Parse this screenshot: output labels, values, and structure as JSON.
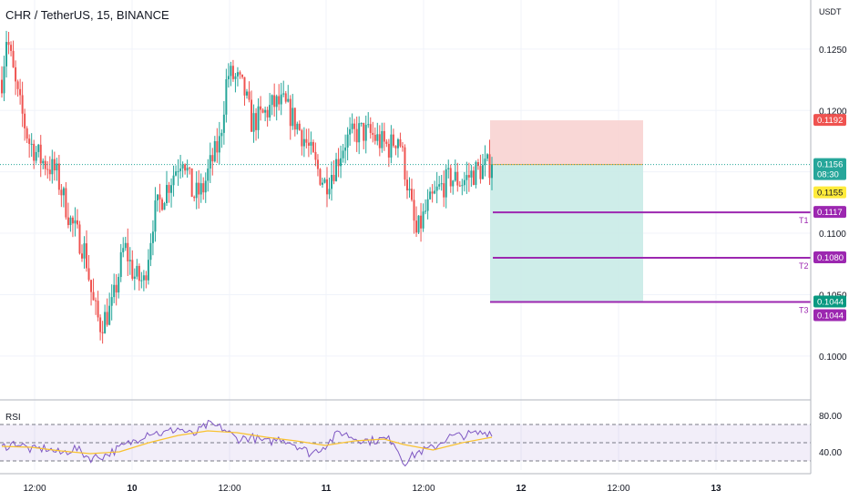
{
  "header": {
    "title": "CHR / TetherUS, 15, BINANCE"
  },
  "price_axis": {
    "unit": "USDT"
  },
  "colors": {
    "up": "#26a69a",
    "down": "#ef5350",
    "target_line": "#9c27b0",
    "stop_zone": "#f8d0cf",
    "profit_zone": "#c9ebe7",
    "current_price": "#26a69a",
    "bid_badge": "#ffeb3b",
    "rsi_line": "#7e57c2",
    "rsi_ma": "#f9c22e"
  },
  "chart_data": {
    "type": "candlestick",
    "symbol": "CHR / TetherUS",
    "interval": "15",
    "exchange": "BINANCE",
    "ylim": [
      0.0965,
      0.129
    ],
    "y_ticks": [
      "0.1250",
      "0.1200",
      "0.1100",
      "0.1050",
      "0.1000"
    ],
    "x_ticks": [
      "12:00",
      "10",
      "12:00",
      "11",
      "12:00",
      "12",
      "12:00",
      "13"
    ],
    "price_path": [
      [
        0.0,
        0.1225
      ],
      [
        0.01,
        0.1262
      ],
      [
        0.03,
        0.1215
      ],
      [
        0.055,
        0.1175
      ],
      [
        0.08,
        0.116
      ],
      [
        0.11,
        0.115
      ],
      [
        0.14,
        0.111
      ],
      [
        0.17,
        0.1085
      ],
      [
        0.185,
        0.1045
      ],
      [
        0.2,
        0.1025
      ],
      [
        0.225,
        0.104
      ],
      [
        0.25,
        0.109
      ],
      [
        0.27,
        0.1065
      ],
      [
        0.29,
        0.106
      ],
      [
        0.31,
        0.1115
      ],
      [
        0.34,
        0.114
      ],
      [
        0.37,
        0.1165
      ],
      [
        0.39,
        0.113
      ],
      [
        0.41,
        0.1135
      ],
      [
        0.425,
        0.1155
      ],
      [
        0.445,
        0.1175
      ],
      [
        0.46,
        0.123
      ],
      [
        0.48,
        0.1225
      ],
      [
        0.495,
        0.1215
      ],
      [
        0.51,
        0.119
      ],
      [
        0.53,
        0.1195
      ],
      [
        0.555,
        0.1205
      ],
      [
        0.575,
        0.1205
      ],
      [
        0.6,
        0.119
      ],
      [
        0.62,
        0.1175
      ],
      [
        0.64,
        0.1155
      ],
      [
        0.66,
        0.114
      ],
      [
        0.68,
        0.1155
      ],
      [
        0.7,
        0.1175
      ],
      [
        0.73,
        0.1183
      ],
      [
        0.755,
        0.118
      ],
      [
        0.77,
        0.1175
      ],
      [
        0.79,
        0.117
      ],
      [
        0.81,
        0.118
      ],
      [
        0.83,
        0.1135
      ],
      [
        0.845,
        0.1098
      ],
      [
        0.865,
        0.1118
      ],
      [
        0.89,
        0.1135
      ],
      [
        0.915,
        0.1145
      ],
      [
        0.94,
        0.1142
      ],
      [
        0.965,
        0.115
      ],
      [
        1.0,
        0.1156
      ]
    ],
    "current_price": {
      "value": 0.1156,
      "label": "0.1156",
      "countdown": "08:30"
    },
    "bid_price": {
      "value": 0.1155,
      "label": "0.1155"
    },
    "stop_loss": {
      "value": 0.1192,
      "label": "0.1192"
    },
    "targets": [
      {
        "name": "T1",
        "value": 0.1117,
        "label": "0.1117"
      },
      {
        "name": "T2",
        "value": 0.108,
        "label": "0.1080"
      },
      {
        "name": "T3",
        "value": 0.1044,
        "label": "0.1044"
      }
    ],
    "position_tool": {
      "entry": 0.1156,
      "stop": 0.1192,
      "target": 0.1044,
      "target_label": "0.1044"
    },
    "rsi": {
      "label": "RSI",
      "ylim": [
        20,
        90
      ],
      "bands": [
        70,
        50,
        30
      ],
      "y_ticks": [
        "80.00",
        "40.00"
      ],
      "path": [
        [
          0.0,
          45
        ],
        [
          0.03,
          50
        ],
        [
          0.06,
          42
        ],
        [
          0.09,
          44
        ],
        [
          0.12,
          38
        ],
        [
          0.15,
          44
        ],
        [
          0.18,
          33
        ],
        [
          0.21,
          36
        ],
        [
          0.24,
          44
        ],
        [
          0.27,
          52
        ],
        [
          0.3,
          62
        ],
        [
          0.33,
          60
        ],
        [
          0.36,
          66
        ],
        [
          0.39,
          58
        ],
        [
          0.42,
          70
        ],
        [
          0.45,
          66
        ],
        [
          0.48,
          54
        ],
        [
          0.51,
          56
        ],
        [
          0.54,
          50
        ],
        [
          0.57,
          55
        ],
        [
          0.6,
          48
        ],
        [
          0.63,
          38
        ],
        [
          0.66,
          47
        ],
        [
          0.69,
          62
        ],
        [
          0.72,
          55
        ],
        [
          0.75,
          52
        ],
        [
          0.78,
          54
        ],
        [
          0.8,
          52
        ],
        [
          0.82,
          28
        ],
        [
          0.85,
          40
        ],
        [
          0.88,
          44
        ],
        [
          0.91,
          56
        ],
        [
          0.94,
          58
        ],
        [
          0.97,
          60
        ],
        [
          1.0,
          62
        ]
      ],
      "ma_path": [
        [
          0.0,
          46
        ],
        [
          0.06,
          45
        ],
        [
          0.12,
          41
        ],
        [
          0.18,
          38
        ],
        [
          0.24,
          40
        ],
        [
          0.3,
          50
        ],
        [
          0.36,
          58
        ],
        [
          0.42,
          63
        ],
        [
          0.48,
          61
        ],
        [
          0.54,
          56
        ],
        [
          0.6,
          52
        ],
        [
          0.66,
          47
        ],
        [
          0.72,
          52
        ],
        [
          0.78,
          54
        ],
        [
          0.82,
          48
        ],
        [
          0.88,
          42
        ],
        [
          0.94,
          50
        ],
        [
          1.0,
          56
        ]
      ]
    }
  }
}
